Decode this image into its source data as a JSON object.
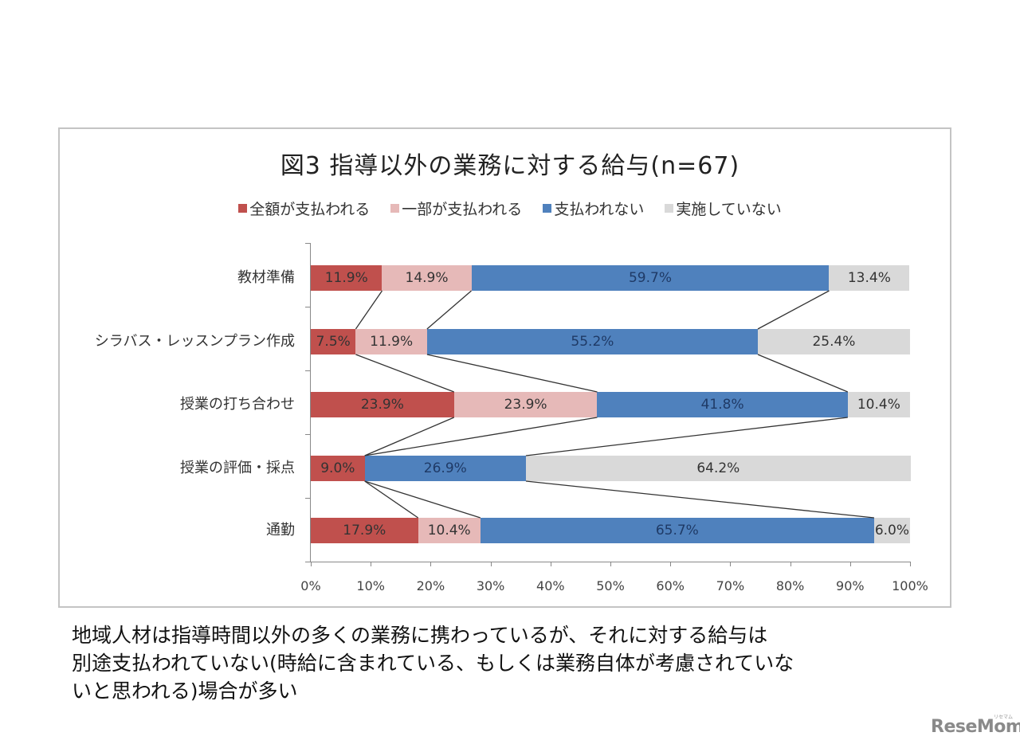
{
  "chart_data": {
    "type": "bar",
    "orientation": "horizontal",
    "stacked": true,
    "normalized": true,
    "title": "図3 指導以外の業務に対する給与(n=67)",
    "xlabel": "",
    "ylabel": "",
    "xlim": [
      0,
      100
    ],
    "x_ticks": [
      "0%",
      "10%",
      "20%",
      "30%",
      "40%",
      "50%",
      "60%",
      "70%",
      "80%",
      "90%",
      "100%"
    ],
    "grid": false,
    "legend_position": "top",
    "series_lines": true,
    "categories": [
      "教材準備",
      "シラバス・レッスンプラン作成",
      "授業の打ち合わせ",
      "授業の評価・採点",
      "通勤"
    ],
    "series": [
      {
        "name": "全額が支払われる",
        "color": "#c0504d",
        "values": [
          11.9,
          7.5,
          23.9,
          9.0,
          17.9
        ],
        "labels": [
          "11.9%",
          "7.5%",
          "23.9%",
          "9.0%",
          "17.9%"
        ]
      },
      {
        "name": "一部が支払われる",
        "color": "#e6b9b8",
        "values": [
          14.9,
          11.9,
          23.9,
          0.0,
          10.4
        ],
        "labels": [
          "14.9%",
          "11.9%",
          "23.9%",
          "",
          "10.4%"
        ]
      },
      {
        "name": "支払われない",
        "color": "#4f81bd",
        "values": [
          59.7,
          55.2,
          41.8,
          26.9,
          65.7
        ],
        "labels": [
          "59.7%",
          "55.2%",
          "41.8%",
          "26.9%",
          "65.7%"
        ]
      },
      {
        "name": "実施していない",
        "color": "#d9d9d9",
        "values": [
          13.4,
          25.4,
          10.4,
          64.2,
          6.0
        ],
        "labels": [
          "13.4%",
          "25.4%",
          "10.4%",
          "64.2%",
          "6.0%"
        ]
      }
    ]
  },
  "title": "図3 指導以外の業務に対する給与(n=67)",
  "legend": [
    {
      "label": "全額が支払われる",
      "color": "#c0504d"
    },
    {
      "label": "一部が支払われる",
      "color": "#e6b9b8"
    },
    {
      "label": "支払われない",
      "color": "#4f81bd"
    },
    {
      "label": "実施していない",
      "color": "#d9d9d9"
    }
  ],
  "categories": [
    "教材準備",
    "シラバス・レッスンプラン作成",
    "授業の打ち合わせ",
    "授業の評価・採点",
    "通勤"
  ],
  "x_ticks": [
    "0%",
    "10%",
    "20%",
    "30%",
    "40%",
    "50%",
    "60%",
    "70%",
    "80%",
    "90%",
    "100%"
  ],
  "caption": {
    "line1": "地域人材は指導時間以外の多くの業務に携わっているが、それに対する給与は",
    "line2": "別途支払われていない(時給に含まれている、もしくは業務自体が考慮されていな",
    "line3": "いと思われる)場合が多い"
  },
  "logo": {
    "text": "ReseMom",
    "sub": "リセマム"
  }
}
